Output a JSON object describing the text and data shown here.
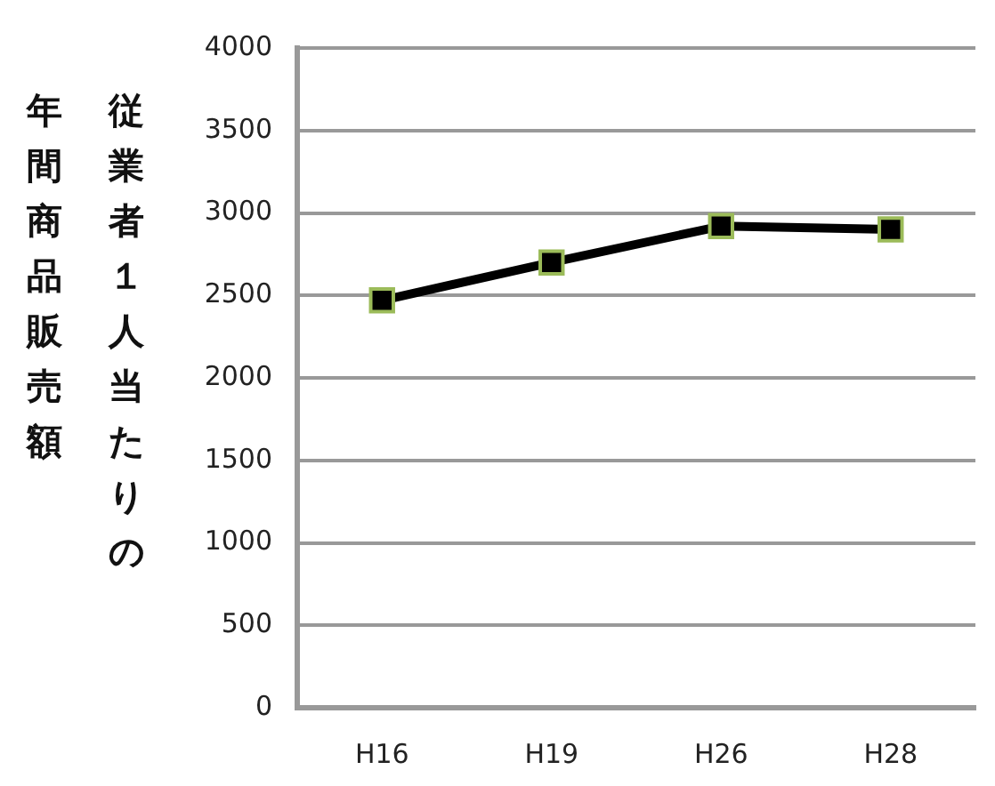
{
  "chart_data": {
    "type": "line",
    "ylabel": "従業者１人当たりの年間商品販売額",
    "categories": [
      "H16",
      "H19",
      "H26",
      "H28"
    ],
    "series": [
      {
        "color": "#000000",
        "values": [
          2470,
          2700,
          2920,
          2900
        ]
      }
    ],
    "ylim": [
      0,
      4000
    ],
    "yticks": [
      0,
      500,
      1000,
      1500,
      2000,
      2500,
      3000,
      3500,
      4000
    ],
    "grid": "y",
    "legend": false,
    "marker": "square",
    "line_style": "solid"
  }
}
